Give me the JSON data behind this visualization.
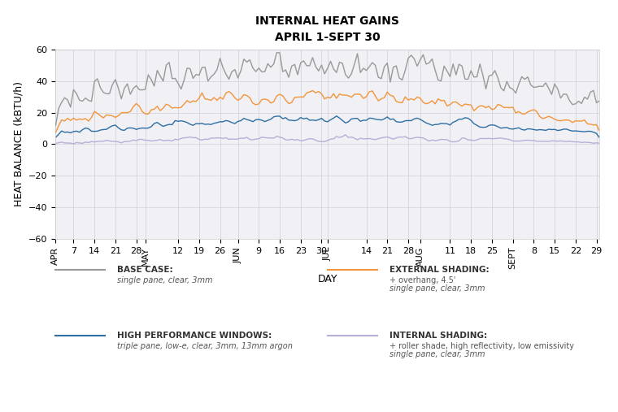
{
  "title": "INTERNAL HEAT GAINS",
  "subtitle": "APRIL 1-SEPT 30",
  "xlabel": "DAY",
  "ylabel": "HEAT BALANCE (kBTU/h)",
  "ylim": [
    -60,
    60
  ],
  "yticks": [
    -60,
    -40,
    -20,
    0,
    20,
    40,
    60
  ],
  "title_fontsize": 10,
  "subtitle_fontsize": 8,
  "axis_label_fontsize": 9,
  "tick_fontsize": 8,
  "background_color": "#ffffff",
  "grid_color": "#d0d0d8",
  "colors": {
    "base_case": "#999999",
    "external_shading": "#f0963c",
    "high_performance": "#2e6fa3",
    "internal_shading": "#b8afd8"
  },
  "legend": {
    "base_case_title": "BASE CASE:",
    "base_case_sub": "single pane, clear, 3mm",
    "external_shading_title": "EXTERNAL SHADING:",
    "external_shading_sub1": "+ overhang, 4.5'",
    "external_shading_sub2": "single pane, clear, 3mm",
    "high_performance_title": "HIGH PERFORMANCE WINDOWS:",
    "high_performance_sub": "triple pane, low-e, clear, 3mm, 13mm argon",
    "internal_shading_title": "INTERNAL SHADING:",
    "internal_shading_sub1": "+ roller shade, high reflectivity, low emissivity",
    "internal_shading_sub2": "single pane, clear, 3mm"
  },
  "x_tick_labels": [
    "APR",
    "7",
    "14",
    "21",
    "28",
    "MAY",
    "12",
    "19",
    "26",
    "JUN",
    "9",
    "16",
    "23",
    "30",
    "JUL",
    "14",
    "21",
    "28",
    "AUG",
    "11",
    "18",
    "25",
    "SEPT",
    "8",
    "15",
    "22",
    "29"
  ],
  "n_points": 183
}
